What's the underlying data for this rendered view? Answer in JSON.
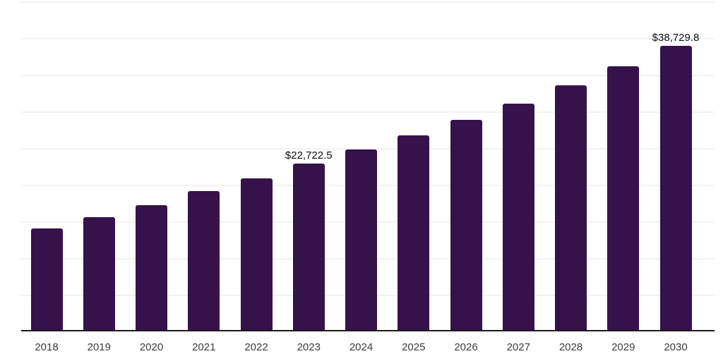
{
  "chart_data": {
    "type": "bar",
    "title": "",
    "xlabel": "",
    "ylabel": "",
    "categories": [
      "2018",
      "2019",
      "2020",
      "2021",
      "2022",
      "2023",
      "2024",
      "2025",
      "2026",
      "2027",
      "2028",
      "2029",
      "2030"
    ],
    "values": [
      13850,
      15400,
      17050,
      18900,
      20700,
      22722.5,
      24650,
      26550,
      28650,
      30850,
      33350,
      35950,
      38729.8
    ],
    "annotations": [
      {
        "category": "2023",
        "text": "$22,722.5"
      },
      {
        "category": "2030",
        "text": "$38,729.8"
      }
    ],
    "ylim": [
      0,
      45000
    ],
    "gridline_step": 5000,
    "grid": true,
    "legend_visible": false,
    "y_tick_labels_visible": false,
    "colors": {
      "bar": "#36124B",
      "axis_line": "#1a1a1a",
      "gridline": "#f2f2f2",
      "value_label_text": "#0d0d0d",
      "x_tick_text": "#3d3d3d",
      "background": "#ffffff"
    }
  }
}
